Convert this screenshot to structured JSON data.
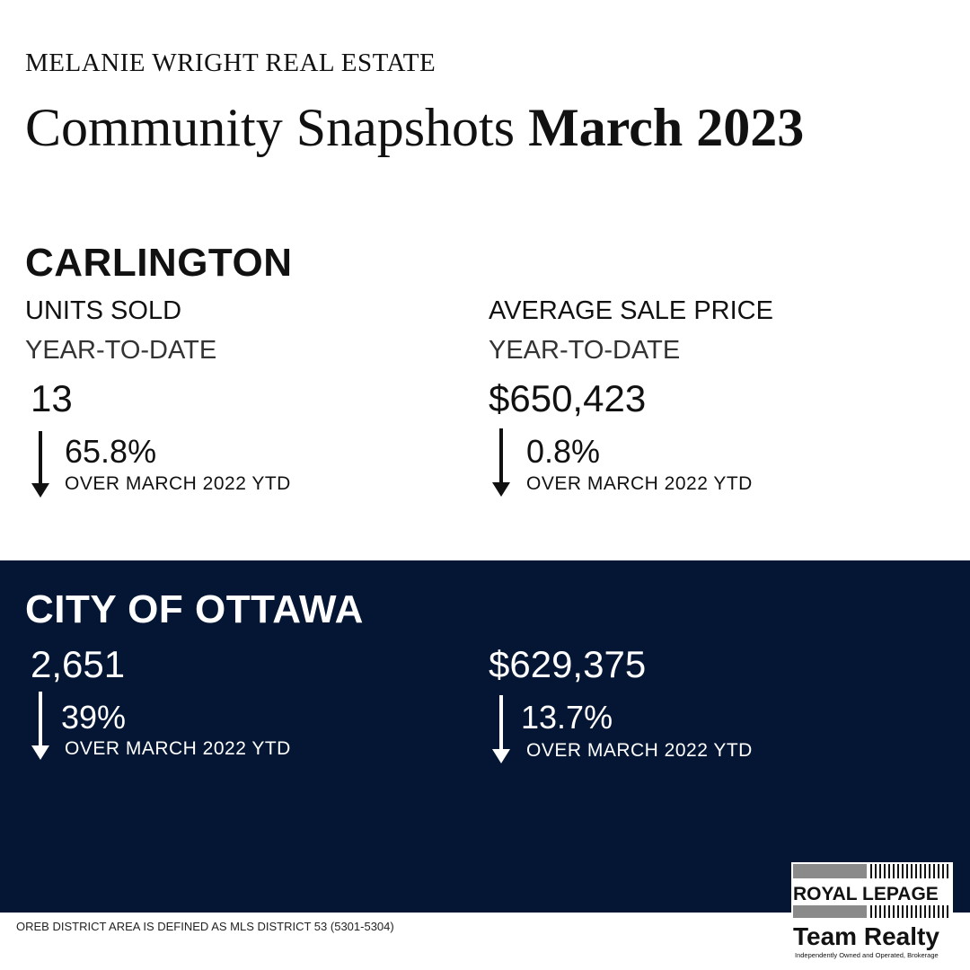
{
  "brand": "MELANIE WRIGHT REAL ESTATE",
  "title": {
    "regular": "Community Snapshots",
    "bold": "March 2023"
  },
  "community": {
    "name": "CARLINGTON",
    "units": {
      "label": "UNITS SOLD",
      "sublabel": "YEAR-TO-DATE",
      "value": "13",
      "change": "65.8%",
      "direction": "down",
      "compare": "OVER MARCH 2022 YTD"
    },
    "price": {
      "label": "AVERAGE SALE PRICE",
      "sublabel": "YEAR-TO-DATE",
      "value": "$650,423",
      "change": "0.8%",
      "direction": "down",
      "compare": "OVER MARCH 2022 YTD"
    }
  },
  "city": {
    "name": "CITY OF OTTAWA",
    "units": {
      "value": "2,651",
      "change": "39%",
      "direction": "down",
      "compare": "OVER MARCH 2022 YTD"
    },
    "price": {
      "value": "$629,375",
      "change": "13.7%",
      "direction": "down",
      "compare": "OVER MARCH 2022 YTD"
    }
  },
  "footnote": "OREB DISTRICT AREA IS DEFINED AS MLS DISTRICT 53 (5301-5304)",
  "logo": {
    "line1": "ROYAL LEPAGE",
    "line2": "Team Realty",
    "line3": "Independently Owned and Operated, Brokerage"
  },
  "colors": {
    "panel": "#041634",
    "text": "#111111",
    "panel_text": "#ffffff"
  },
  "icons": [
    "arrow-down-icon"
  ]
}
